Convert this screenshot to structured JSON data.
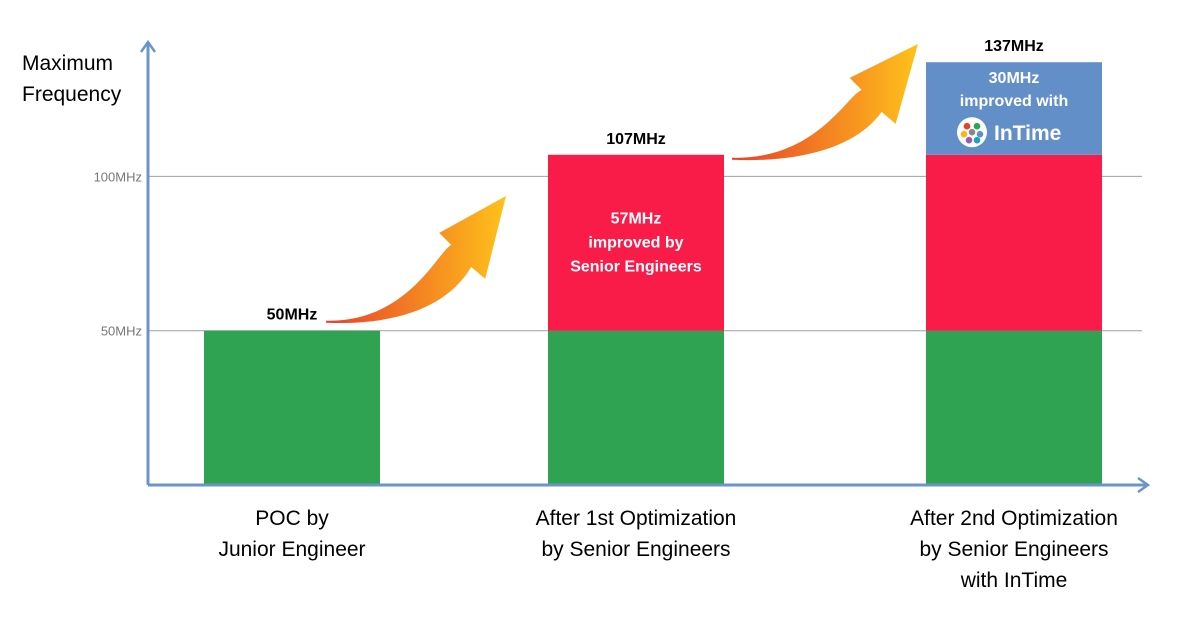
{
  "chart_data": {
    "type": "bar",
    "stacked": true,
    "categories": [
      [
        "POC by",
        "Junior Engineer"
      ],
      [
        "After 1st Optimization",
        "by Senior Engineers"
      ],
      [
        "After 2nd Optimization",
        "by Senior Engineers",
        "with InTime"
      ]
    ],
    "series": [
      {
        "values": [
          50,
          50,
          50
        ],
        "color": "#2fa352"
      },
      {
        "values": [
          0,
          57,
          57
        ],
        "color": "#f91b48"
      },
      {
        "values": [
          0,
          0,
          30
        ],
        "color": "#628fc8"
      }
    ],
    "totals": [
      "50MHz",
      "107MHz",
      "137MHz"
    ],
    "segment_labels": [
      {
        "bar": 1,
        "segment": 1,
        "lines": [
          "57MHz",
          "improved by",
          "Senior Engineers"
        ]
      },
      {
        "bar": 2,
        "segment": 2,
        "lines": [
          "30MHz",
          "improved with"
        ]
      }
    ],
    "logo": {
      "text": "InTime",
      "icon": "hexagon-cluster-icon"
    },
    "ylabel_lines": [
      "Maximum",
      "Frequency"
    ],
    "yticks": [
      {
        "value": 50,
        "label": "50MHz"
      },
      {
        "value": 100,
        "label": "100MHz"
      }
    ],
    "ylim": [
      0,
      145
    ],
    "grid": true,
    "arrows": "gradient-curved-up-between-bars",
    "colors": {
      "axis": "#6b94c9",
      "grid": "#a0a0a0",
      "arrow_start": "#e8402a",
      "arrow_end": "#ffc21a"
    }
  }
}
